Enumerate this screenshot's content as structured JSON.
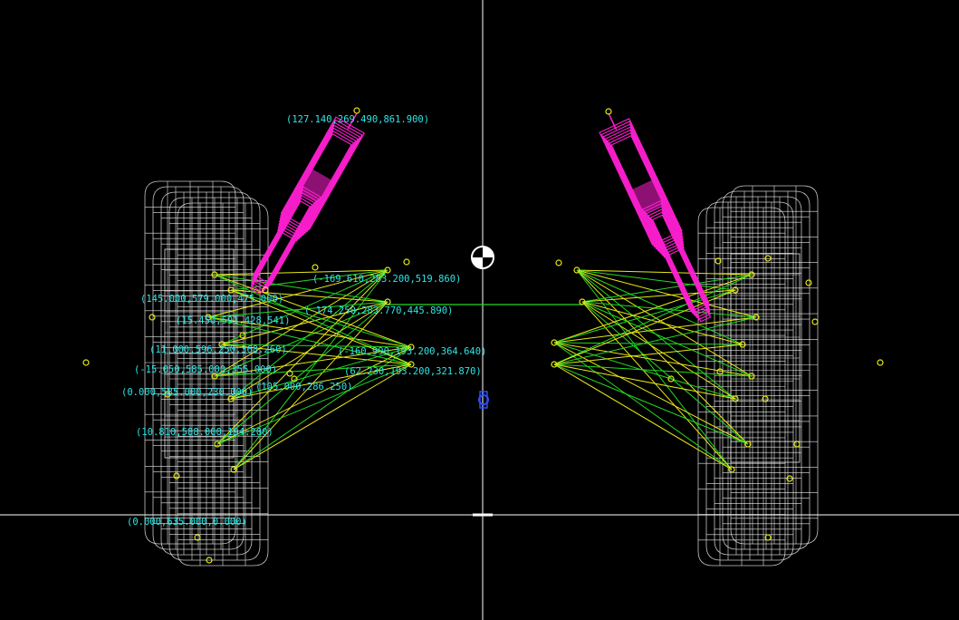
{
  "colors": {
    "background": "#000000",
    "axis": "#ffffff",
    "wheel": "#e8e8e8",
    "shock": "#ff1fd2",
    "control_arm": "#e8e818",
    "link": "#22d822",
    "label": "#2ce6e6",
    "cg_marker": "#ffffff",
    "blue_point": "#2a4cff"
  },
  "icons": {
    "cg": "center-of-gravity-icon",
    "point": "hardpoint-marker-icon"
  },
  "labels": {
    "shock_top": "(127.140,269.490,861.900)",
    "upper_arm_front": "(-169.610,283.200,519.860)",
    "upper_arm_rear": "(-174.250,283.770,445.890)",
    "upper_outer": "(145.000,579.000,475.000)",
    "upper_ball": "(15.450,591.428,541)",
    "knuckle_mid": "(11.000,596.250,368.260)",
    "lower_arm_front": "(-160.990,193.200,364.640)",
    "lower_arm_rear": "(62.230,193.200,321.870)",
    "knuckle_low": "(-15.050,585.000,355.000)",
    "tie_rod": "(0.000,585.000,230.000)",
    "tie_rod_inner": "(105.000,286.250)",
    "lower_ball": "(10.810,588.000,194.200)",
    "contact_patch": "(0.000,635.000,0.000)"
  }
}
